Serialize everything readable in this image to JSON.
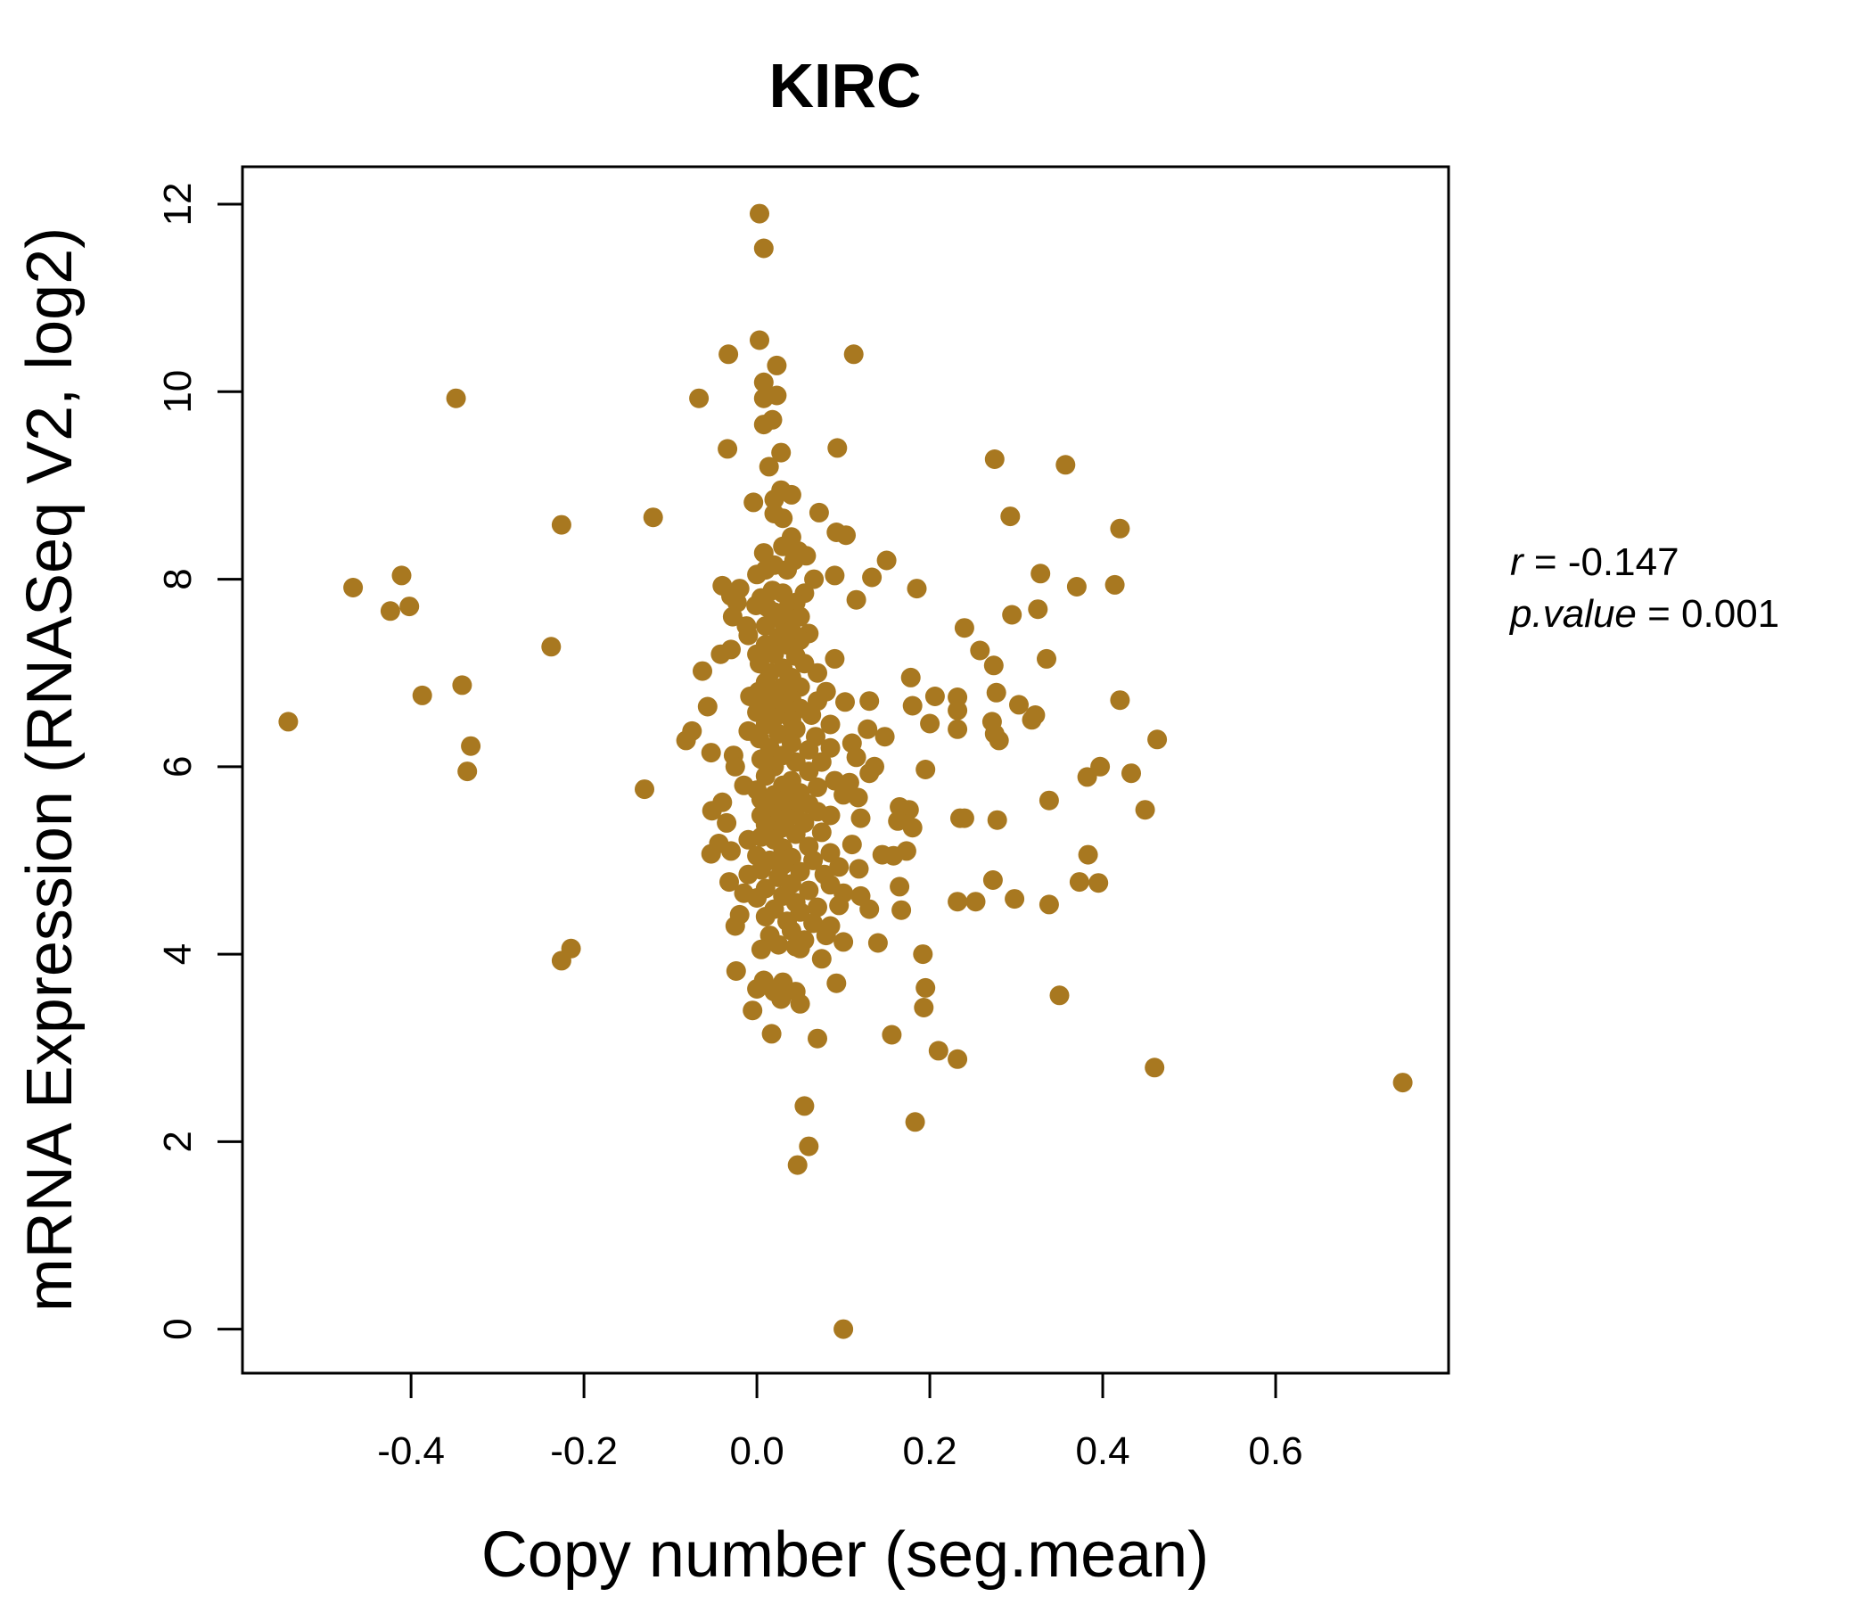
{
  "chart_data": {
    "type": "scatter",
    "title": "KIRC",
    "xlabel": "Copy number (seg.mean)",
    "ylabel": "mRNA Expression (RNASeq V2, log2)",
    "xlim": [
      -0.595,
      0.8
    ],
    "ylim": [
      -0.47,
      12.4
    ],
    "xticks": [
      -0.4,
      -0.2,
      0.0,
      0.2,
      0.4,
      0.6
    ],
    "xtick_labels": [
      "-0.4",
      "-0.2",
      "0.0",
      "0.2",
      "0.4",
      "0.6"
    ],
    "yticks": [
      0,
      2,
      4,
      6,
      8,
      10,
      12
    ],
    "ytick_labels": [
      "0",
      "2",
      "4",
      "6",
      "8",
      "10",
      "12"
    ],
    "grid": false,
    "point_color": "#a87820",
    "stats": {
      "r_label": "r",
      "r_value": "-0.147",
      "p_label": "p.value",
      "p_value": "0.001"
    },
    "points": [
      [
        0.003,
        11.9
      ],
      [
        0.008,
        11.53
      ],
      [
        0.003,
        10.55
      ],
      [
        -0.033,
        10.4
      ],
      [
        0.112,
        10.4
      ],
      [
        0.023,
        10.28
      ],
      [
        0.008,
        10.1
      ],
      [
        0.023,
        9.96
      ],
      [
        0.008,
        9.93
      ],
      [
        -0.067,
        9.93
      ],
      [
        -0.348,
        9.93
      ],
      [
        0.018,
        9.7
      ],
      [
        0.008,
        9.65
      ],
      [
        -0.034,
        9.39
      ],
      [
        0.093,
        9.4
      ],
      [
        0.028,
        9.35
      ],
      [
        0.275,
        9.28
      ],
      [
        0.357,
        9.22
      ],
      [
        0.014,
        9.2
      ],
      [
        0.028,
        8.95
      ],
      [
        0.04,
        8.9
      ],
      [
        0.02,
        8.85
      ],
      [
        -0.004,
        8.82
      ],
      [
        0.072,
        8.71
      ],
      [
        0.02,
        8.7
      ],
      [
        0.03,
        8.65
      ],
      [
        0.293,
        8.67
      ],
      [
        -0.12,
        8.66
      ],
      [
        -0.226,
        8.58
      ],
      [
        0.092,
        8.5
      ],
      [
        0.103,
        8.47
      ],
      [
        0.42,
        8.54
      ],
      [
        0.04,
        8.45
      ],
      [
        0.03,
        8.35
      ],
      [
        0.048,
        8.3
      ],
      [
        0.008,
        8.28
      ],
      [
        0.043,
        8.2
      ],
      [
        0.057,
        8.25
      ],
      [
        0.15,
        8.2
      ],
      [
        0.02,
        8.15
      ],
      [
        0.035,
        8.1
      ],
      [
        0.01,
        8.1
      ],
      [
        0.0,
        8.05
      ],
      [
        0.09,
        8.04
      ],
      [
        0.133,
        8.02
      ],
      [
        0.066,
        8.0
      ],
      [
        0.328,
        8.06
      ],
      [
        -0.411,
        8.04
      ],
      [
        -0.467,
        7.91
      ],
      [
        0.37,
        7.92
      ],
      [
        0.414,
        7.94
      ],
      [
        0.185,
        7.9
      ],
      [
        0.018,
        7.88
      ],
      [
        -0.04,
        7.93
      ],
      [
        -0.02,
        7.9
      ],
      [
        0.03,
        7.85
      ],
      [
        0.055,
        7.85
      ],
      [
        0.115,
        7.78
      ],
      [
        0.005,
        7.8
      ],
      [
        -0.023,
        7.75
      ],
      [
        -0.03,
        7.82
      ],
      [
        0.045,
        7.75
      ],
      [
        0.012,
        7.7
      ],
      [
        -0.001,
        7.72
      ],
      [
        0.035,
        7.68
      ],
      [
        -0.402,
        7.71
      ],
      [
        -0.424,
        7.66
      ],
      [
        0.325,
        7.68
      ],
      [
        0.295,
        7.62
      ],
      [
        0.02,
        7.65
      ],
      [
        0.05,
        7.6
      ],
      [
        -0.028,
        7.6
      ],
      [
        0.03,
        7.55
      ],
      [
        -0.012,
        7.5
      ],
      [
        0.01,
        7.5
      ],
      [
        0.24,
        7.48
      ],
      [
        0.04,
        7.45
      ],
      [
        0.06,
        7.42
      ],
      [
        -0.01,
        7.4
      ],
      [
        0.025,
        7.38
      ],
      [
        0.05,
        7.35
      ],
      [
        0.01,
        7.3
      ],
      [
        0.035,
        7.3
      ],
      [
        -0.238,
        7.28
      ],
      [
        0.258,
        7.24
      ],
      [
        -0.03,
        7.25
      ],
      [
        -0.042,
        7.2
      ],
      [
        0.0,
        7.2
      ],
      [
        0.02,
        7.2
      ],
      [
        0.045,
        7.18
      ],
      [
        0.09,
        7.15
      ],
      [
        0.335,
        7.15
      ],
      [
        0.055,
        7.1
      ],
      [
        0.274,
        7.08
      ],
      [
        0.003,
        7.1
      ],
      [
        0.03,
        7.05
      ],
      [
        -0.063,
        7.02
      ],
      [
        0.015,
        7.0
      ],
      [
        0.07,
        7.0
      ],
      [
        0.04,
        6.95
      ],
      [
        0.178,
        6.95
      ],
      [
        0.01,
        6.9
      ],
      [
        0.03,
        6.85
      ],
      [
        -0.341,
        6.87
      ],
      [
        0.05,
        6.85
      ],
      [
        0.002,
        6.8
      ],
      [
        0.08,
        6.8
      ],
      [
        0.277,
        6.79
      ],
      [
        -0.387,
        6.76
      ],
      [
        0.015,
        6.75
      ],
      [
        -0.008,
        6.75
      ],
      [
        0.206,
        6.75
      ],
      [
        0.232,
        6.74
      ],
      [
        0.04,
        6.72
      ],
      [
        0.07,
        6.7
      ],
      [
        0.102,
        6.69
      ],
      [
        0.13,
        6.7
      ],
      [
        0.42,
        6.71
      ],
      [
        0.025,
        6.68
      ],
      [
        0.303,
        6.66
      ],
      [
        -0.057,
        6.64
      ],
      [
        0.008,
        6.65
      ],
      [
        0.05,
        6.62
      ],
      [
        0.18,
        6.65
      ],
      [
        0.032,
        6.6
      ],
      [
        0.232,
        6.6
      ],
      [
        0.322,
        6.55
      ],
      [
        0.0,
        6.58
      ],
      [
        0.063,
        6.55
      ],
      [
        0.02,
        6.52
      ],
      [
        0.04,
        6.5
      ],
      [
        0.272,
        6.48
      ],
      [
        -0.542,
        6.48
      ],
      [
        0.318,
        6.5
      ],
      [
        0.085,
        6.45
      ],
      [
        0.2,
        6.46
      ],
      [
        0.01,
        6.45
      ],
      [
        -0.075,
        6.38
      ],
      [
        0.232,
        6.4
      ],
      [
        0.045,
        6.4
      ],
      [
        0.128,
        6.4
      ],
      [
        -0.01,
        6.38
      ],
      [
        0.025,
        6.35
      ],
      [
        0.275,
        6.35
      ],
      [
        0.068,
        6.32
      ],
      [
        0.148,
        6.32
      ],
      [
        0.003,
        6.3
      ],
      [
        0.28,
        6.28
      ],
      [
        -0.082,
        6.28
      ],
      [
        0.463,
        6.29
      ],
      [
        0.11,
        6.25
      ],
      [
        0.04,
        6.25
      ],
      [
        -0.331,
        6.22
      ],
      [
        0.015,
        6.2
      ],
      [
        0.085,
        6.2
      ],
      [
        0.06,
        6.18
      ],
      [
        -0.053,
        6.15
      ],
      [
        -0.027,
        6.12
      ],
      [
        0.03,
        6.12
      ],
      [
        0.115,
        6.1
      ],
      [
        0.005,
        6.08
      ],
      [
        0.075,
        6.05
      ],
      [
        0.045,
        6.05
      ],
      [
        -0.025,
        6.0
      ],
      [
        0.136,
        6.0
      ],
      [
        0.02,
        6.0
      ],
      [
        0.397,
        6.0
      ],
      [
        0.195,
        5.97
      ],
      [
        -0.335,
        5.95
      ],
      [
        0.06,
        5.95
      ],
      [
        0.433,
        5.93
      ],
      [
        0.13,
        5.93
      ],
      [
        0.01,
        5.9
      ],
      [
        0.382,
        5.89
      ],
      [
        0.09,
        5.85
      ],
      [
        0.04,
        5.85
      ],
      [
        0.107,
        5.83
      ],
      [
        0.03,
        5.8
      ],
      [
        -0.015,
        5.8
      ],
      [
        0.07,
        5.78
      ],
      [
        0.0,
        5.75
      ],
      [
        -0.13,
        5.76
      ],
      [
        0.05,
        5.72
      ],
      [
        0.02,
        5.7
      ],
      [
        0.1,
        5.7
      ],
      [
        0.117,
        5.67
      ],
      [
        0.034,
        5.65
      ],
      [
        0.005,
        5.65
      ],
      [
        0.338,
        5.64
      ],
      [
        0.06,
        5.6
      ],
      [
        -0.04,
        5.62
      ],
      [
        0.165,
        5.57
      ],
      [
        0.015,
        5.58
      ],
      [
        0.045,
        5.55
      ],
      [
        0.176,
        5.54
      ],
      [
        -0.052,
        5.53
      ],
      [
        0.449,
        5.54
      ],
      [
        0.07,
        5.52
      ],
      [
        0.025,
        5.5
      ],
      [
        0.085,
        5.48
      ],
      [
        0.005,
        5.48
      ],
      [
        0.235,
        5.45
      ],
      [
        0.24,
        5.45
      ],
      [
        0.278,
        5.43
      ],
      [
        0.035,
        5.45
      ],
      [
        0.12,
        5.45
      ],
      [
        0.163,
        5.42
      ],
      [
        -0.035,
        5.4
      ],
      [
        0.055,
        5.4
      ],
      [
        0.01,
        5.38
      ],
      [
        0.18,
        5.35
      ],
      [
        0.03,
        5.35
      ],
      [
        0.075,
        5.3
      ],
      [
        0.045,
        5.28
      ],
      [
        0.005,
        5.25
      ],
      [
        -0.01,
        5.22
      ],
      [
        0.02,
        5.22
      ],
      [
        -0.044,
        5.18
      ],
      [
        0.11,
        5.17
      ],
      [
        0.06,
        5.15
      ],
      [
        0.03,
        5.13
      ],
      [
        -0.03,
        5.1
      ],
      [
        0.173,
        5.1
      ],
      [
        0.085,
        5.08
      ],
      [
        0.145,
        5.06
      ],
      [
        0.383,
        5.06
      ],
      [
        0.158,
        5.05
      ],
      [
        -0.053,
        5.07
      ],
      [
        0.0,
        5.05
      ],
      [
        0.04,
        5.03
      ],
      [
        0.015,
        5.0
      ],
      [
        0.065,
        5.0
      ],
      [
        0.03,
        4.95
      ],
      [
        0.095,
        4.93
      ],
      [
        0.118,
        4.91
      ],
      [
        0.005,
        4.9
      ],
      [
        0.05,
        4.88
      ],
      [
        -0.01,
        4.85
      ],
      [
        0.078,
        4.85
      ],
      [
        0.025,
        4.82
      ],
      [
        0.273,
        4.79
      ],
      [
        0.373,
        4.77
      ],
      [
        0.395,
        4.76
      ],
      [
        -0.032,
        4.77
      ],
      [
        0.04,
        4.75
      ],
      [
        0.085,
        4.74
      ],
      [
        0.165,
        4.72
      ],
      [
        0.01,
        4.7
      ],
      [
        0.06,
        4.68
      ],
      [
        0.1,
        4.65
      ],
      [
        -0.015,
        4.65
      ],
      [
        0.03,
        4.62
      ],
      [
        0.12,
        4.62
      ],
      [
        0.298,
        4.59
      ],
      [
        0.0,
        4.6
      ],
      [
        0.232,
        4.56
      ],
      [
        0.253,
        4.56
      ],
      [
        0.045,
        4.55
      ],
      [
        0.338,
        4.53
      ],
      [
        0.095,
        4.52
      ],
      [
        0.07,
        4.5
      ],
      [
        0.13,
        4.48
      ],
      [
        0.167,
        4.47
      ],
      [
        0.02,
        4.48
      ],
      [
        0.05,
        4.45
      ],
      [
        -0.02,
        4.42
      ],
      [
        0.01,
        4.4
      ],
      [
        0.035,
        4.35
      ],
      [
        0.065,
        4.33
      ],
      [
        0.085,
        4.3
      ],
      [
        -0.025,
        4.3
      ],
      [
        0.04,
        4.25
      ],
      [
        0.08,
        4.2
      ],
      [
        0.015,
        4.2
      ],
      [
        0.055,
        4.15
      ],
      [
        0.1,
        4.13
      ],
      [
        0.14,
        4.12
      ],
      [
        0.025,
        4.1
      ],
      [
        0.045,
        4.08
      ],
      [
        0.005,
        4.05
      ],
      [
        0.05,
        4.06
      ],
      [
        -0.215,
        4.06
      ],
      [
        0.192,
        4.0
      ],
      [
        0.075,
        3.95
      ],
      [
        -0.226,
        3.93
      ],
      [
        -0.024,
        3.82
      ],
      [
        0.195,
        3.64
      ],
      [
        0.008,
        3.72
      ],
      [
        0.03,
        3.7
      ],
      [
        0.092,
        3.69
      ],
      [
        0.02,
        3.6
      ],
      [
        0.045,
        3.6
      ],
      [
        0.028,
        3.52
      ],
      [
        0.0,
        3.63
      ],
      [
        0.05,
        3.47
      ],
      [
        0.35,
        3.56
      ],
      [
        0.193,
        3.43
      ],
      [
        -0.005,
        3.4
      ],
      [
        0.017,
        3.15
      ],
      [
        0.156,
        3.14
      ],
      [
        0.07,
        3.1
      ],
      [
        0.21,
        2.97
      ],
      [
        0.232,
        2.88
      ],
      [
        0.46,
        2.79
      ],
      [
        0.747,
        2.63
      ],
      [
        0.055,
        2.38
      ],
      [
        0.183,
        2.21
      ],
      [
        0.06,
        1.95
      ],
      [
        0.047,
        1.75
      ],
      [
        0.1,
        0.0
      ]
    ]
  }
}
